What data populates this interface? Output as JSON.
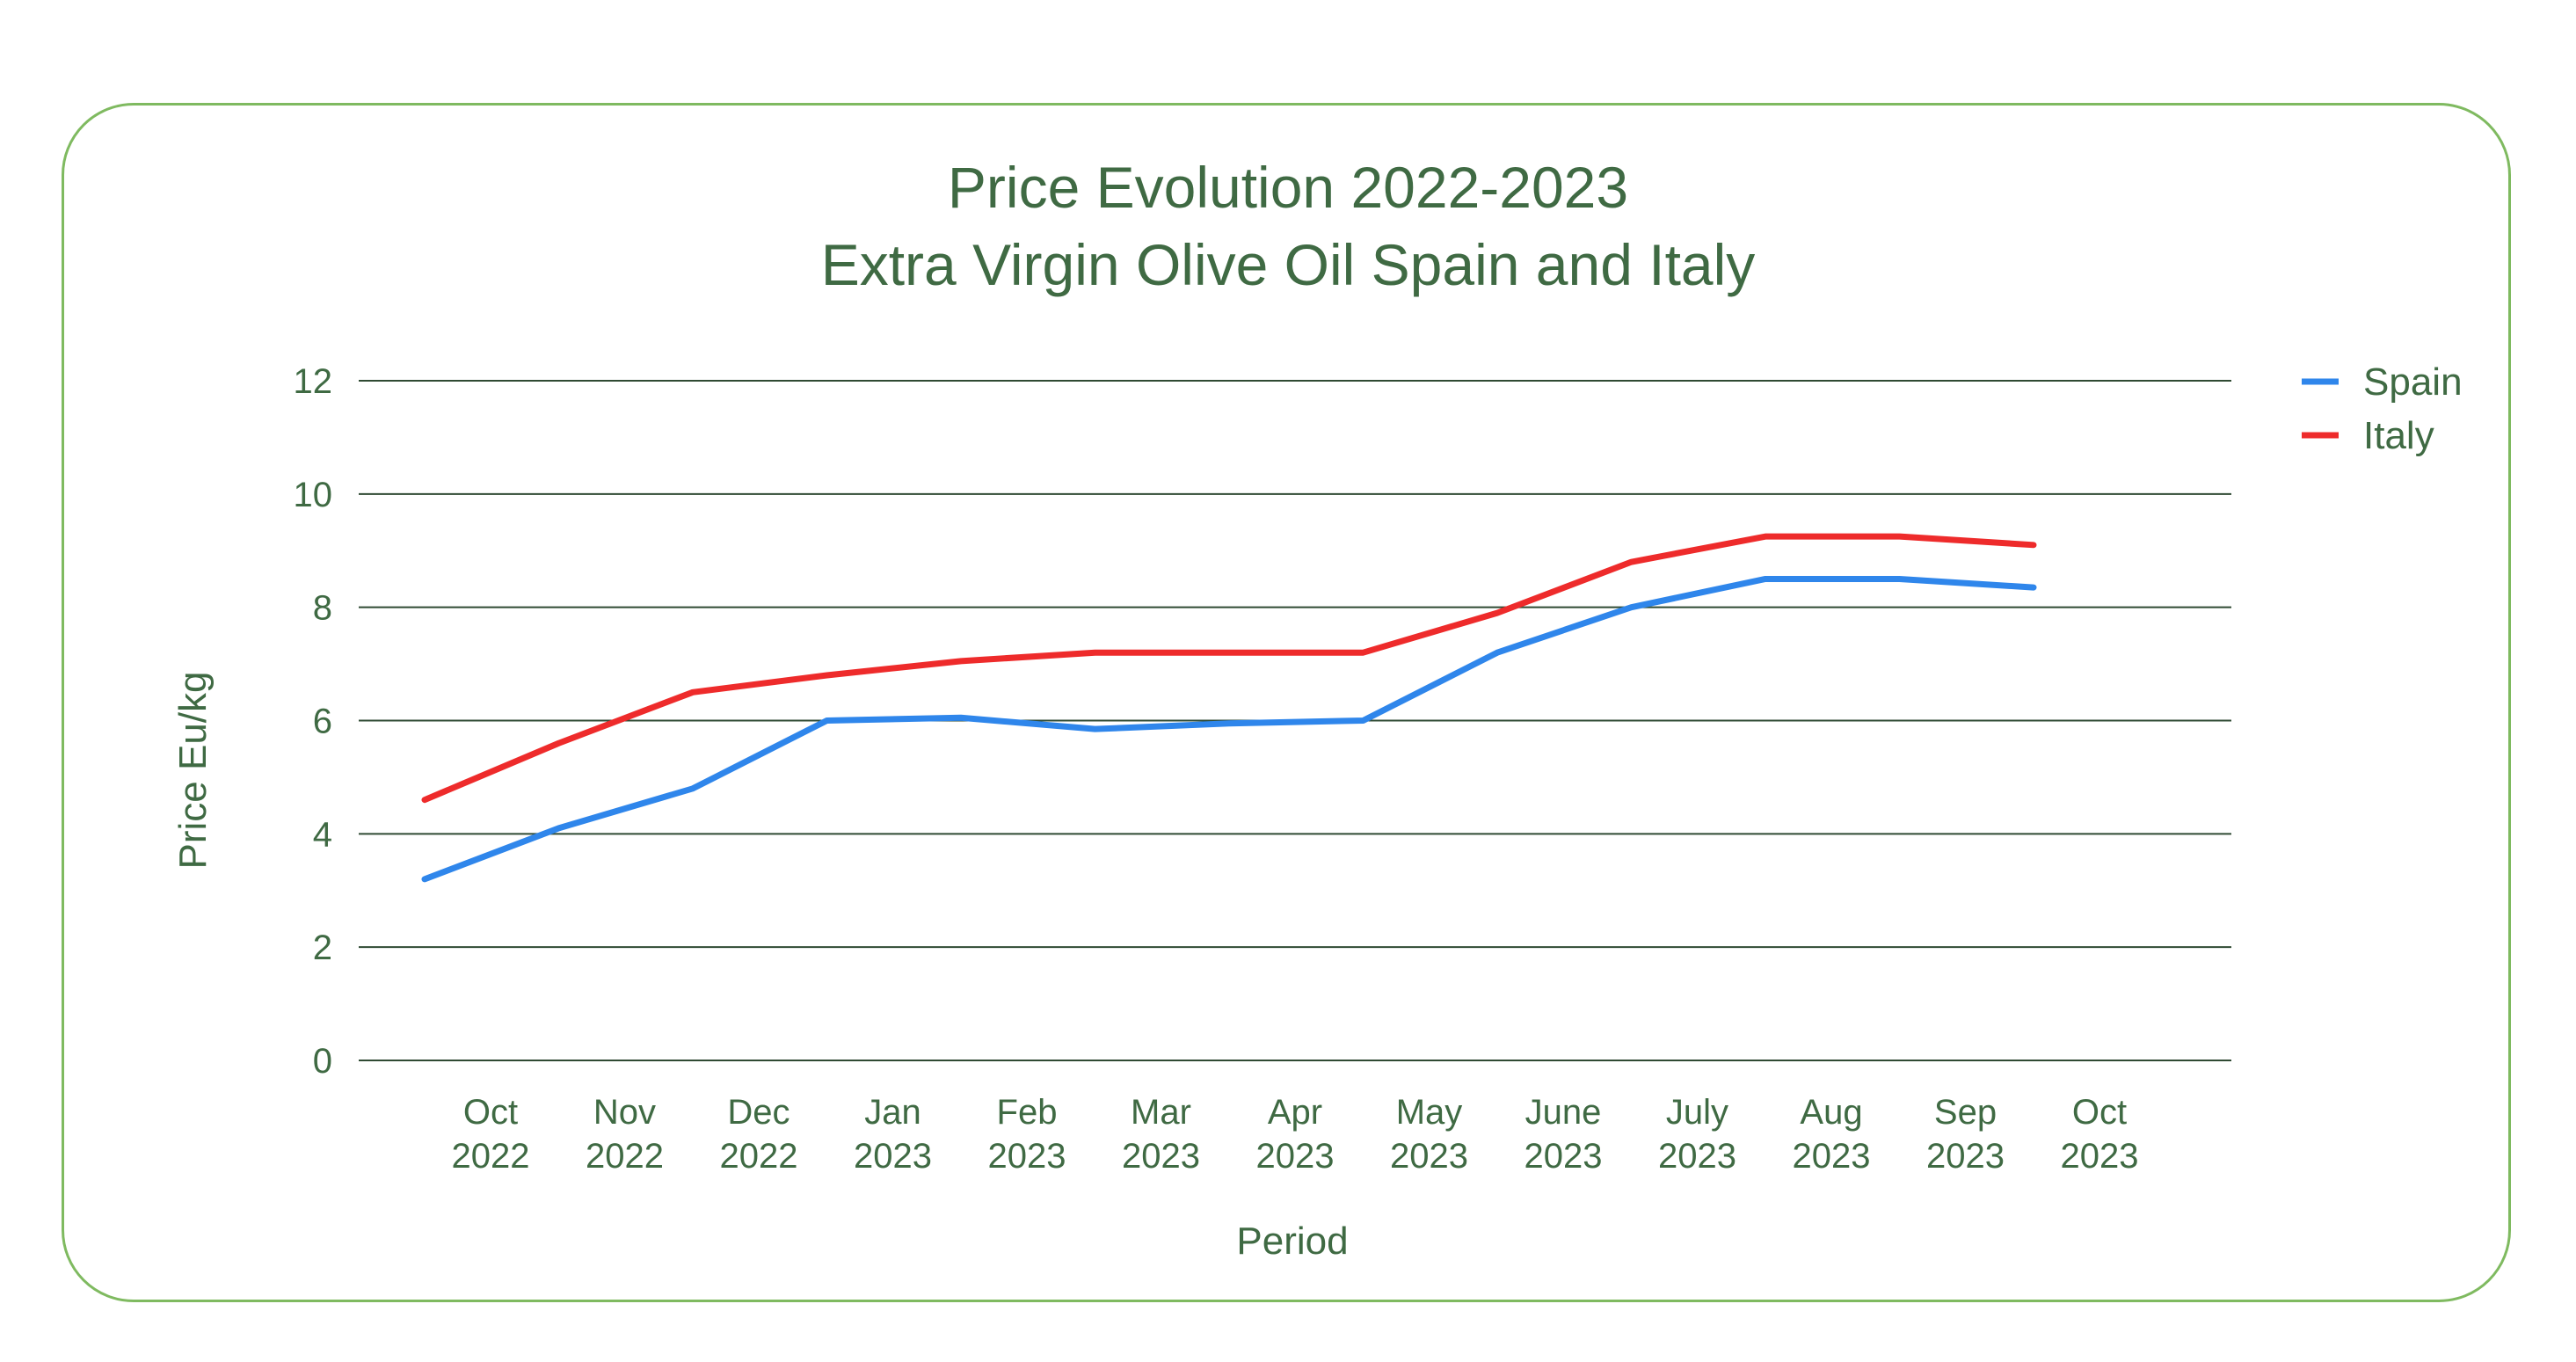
{
  "chart_data": {
    "type": "line",
    "title": "Price Evolution 2022-2023",
    "subtitle": "Extra Virgin Olive Oil Spain and Italy",
    "xlabel": "Period",
    "ylabel": "Price Eu/kg",
    "ylim": [
      0,
      12
    ],
    "yticks": [
      0,
      2,
      4,
      6,
      8,
      10,
      12
    ],
    "grid": true,
    "legend": "right",
    "categories": [
      [
        "Oct",
        "2022"
      ],
      [
        "Nov",
        "2022"
      ],
      [
        "Dec",
        "2022"
      ],
      [
        "Jan",
        "2023"
      ],
      [
        "Feb",
        "2023"
      ],
      [
        "Mar",
        "2023"
      ],
      [
        "Apr",
        "2023"
      ],
      [
        "May",
        "2023"
      ],
      [
        "June",
        "2023"
      ],
      [
        "July",
        "2023"
      ],
      [
        "Aug",
        "2023"
      ],
      [
        "Sep",
        "2023"
      ],
      [
        "Oct",
        "2023"
      ]
    ],
    "series": [
      {
        "name": "Spain",
        "color": "#2f86eb",
        "values": [
          3.2,
          4.1,
          4.8,
          6.0,
          6.05,
          5.85,
          5.95,
          6.0,
          7.2,
          8.0,
          8.5,
          8.5,
          8.35
        ]
      },
      {
        "name": "Italy",
        "color": "#ee2b2b",
        "values": [
          4.6,
          5.6,
          6.5,
          6.8,
          7.05,
          7.2,
          7.2,
          7.2,
          7.9,
          8.8,
          9.25,
          9.25,
          9.1
        ]
      }
    ]
  }
}
